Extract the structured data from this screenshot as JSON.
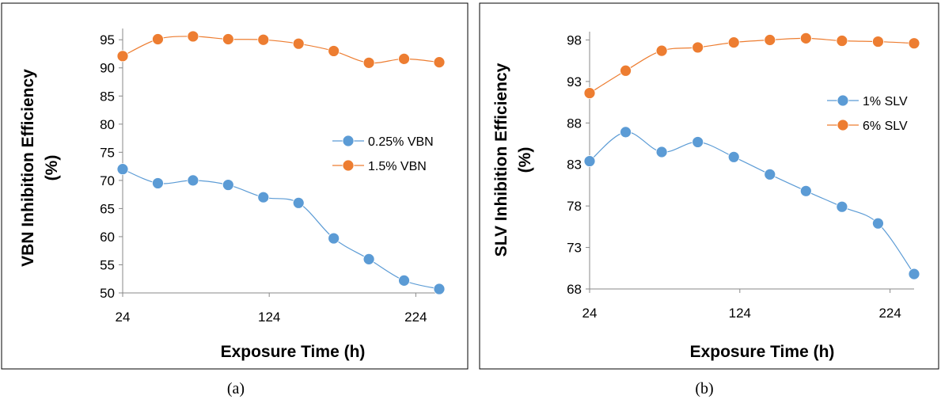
{
  "chart_data": [
    {
      "type": "line",
      "caption": "(a)",
      "xlabel": "Exposure Time (h)",
      "ylabel_line1": "VBN Inhibition Efficiency",
      "ylabel_line2": "(%)",
      "xlim": [
        24,
        240
      ],
      "ylim": [
        50,
        97
      ],
      "xticks": [
        24,
        124,
        224
      ],
      "yticks": [
        50,
        55,
        60,
        65,
        70,
        75,
        80,
        85,
        90,
        95
      ],
      "grid": false,
      "legend_position": "right",
      "series": [
        {
          "name": "0.25% VBN",
          "color": "#5b9bd5",
          "x": [
            24,
            48,
            72,
            96,
            120,
            144,
            168,
            192,
            216,
            240
          ],
          "y": [
            72,
            69.5,
            70,
            69.2,
            67,
            66,
            59.7,
            56,
            52.2,
            50.7
          ]
        },
        {
          "name": "1.5% VBN",
          "color": "#ed7d31",
          "x": [
            24,
            48,
            72,
            96,
            120,
            144,
            168,
            192,
            216,
            240
          ],
          "y": [
            92.1,
            95.1,
            95.6,
            95.1,
            95,
            94.3,
            93,
            90.9,
            91.6,
            91
          ]
        }
      ]
    },
    {
      "type": "line",
      "caption": "(b)",
      "xlabel": "Exposure Time (h)",
      "ylabel_line1": "SLV Inhibition Efficiency",
      "ylabel_line2": "(%)",
      "xlim": [
        24,
        240
      ],
      "ylim": [
        68,
        99
      ],
      "xticks": [
        24,
        124,
        224
      ],
      "yticks": [
        68,
        73,
        78,
        83,
        88,
        93,
        98
      ],
      "grid": false,
      "legend_position": "right",
      "series": [
        {
          "name": "1% SLV",
          "color": "#5b9bd5",
          "x": [
            24,
            48,
            72,
            96,
            120,
            144,
            168,
            192,
            216,
            240
          ],
          "y": [
            83.4,
            86.9,
            84.5,
            85.7,
            83.9,
            81.8,
            79.8,
            77.9,
            75.9,
            69.8
          ]
        },
        {
          "name": "6% SLV",
          "color": "#ed7d31",
          "x": [
            24,
            48,
            72,
            96,
            120,
            144,
            168,
            192,
            216,
            240
          ],
          "y": [
            91.6,
            94.3,
            96.7,
            97.1,
            97.7,
            98,
            98.2,
            97.9,
            97.8,
            97.6
          ]
        }
      ]
    }
  ]
}
